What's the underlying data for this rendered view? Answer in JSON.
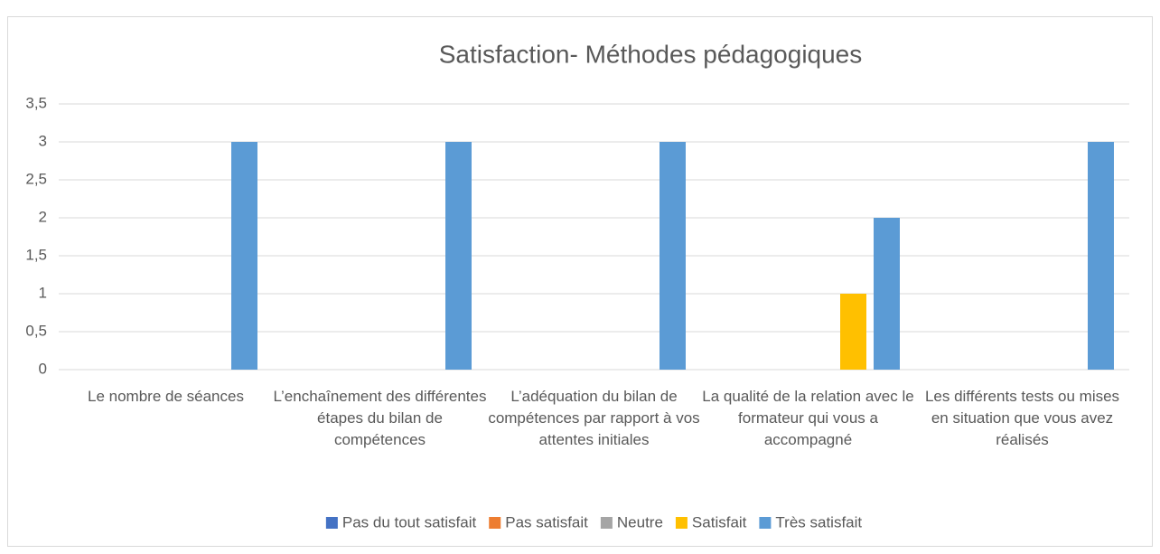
{
  "chart_data": {
    "type": "bar",
    "title": "Satisfaction- Méthodes pédagogiques",
    "categories": [
      "Le nombre de séances",
      "L’enchaînement des différentes étapes du bilan de compétences",
      "L’adéquation du bilan de compétences par rapport à vos attentes initiales",
      "La qualité de la relation avec le formateur qui vous a accompagné",
      "Les différents tests ou mises en situation que vous avez réalisés"
    ],
    "series": [
      {
        "name": "Pas du tout satisfait",
        "color": "#4472c4",
        "values": [
          0,
          0,
          0,
          0,
          0
        ]
      },
      {
        "name": "Pas satisfait",
        "color": "#ed7d31",
        "values": [
          0,
          0,
          0,
          0,
          0
        ]
      },
      {
        "name": "Neutre",
        "color": "#a5a5a5",
        "values": [
          0,
          0,
          0,
          0,
          0
        ]
      },
      {
        "name": "Satisfait",
        "color": "#ffc000",
        "values": [
          0,
          0,
          0,
          1,
          0
        ]
      },
      {
        "name": "Très satisfait",
        "color": "#5b9bd5",
        "values": [
          3,
          3,
          3,
          2,
          3
        ]
      }
    ],
    "ylim": [
      0,
      3.5
    ],
    "yticks": [
      0,
      {
        "value": 0.5,
        "label": "0,5"
      },
      1,
      {
        "value": 1.5,
        "label": "1,5"
      },
      2,
      {
        "value": 2.5,
        "label": "2,5"
      },
      3,
      {
        "value": 3.5,
        "label": "3,5"
      }
    ],
    "grid": true,
    "legend": "bottom"
  }
}
